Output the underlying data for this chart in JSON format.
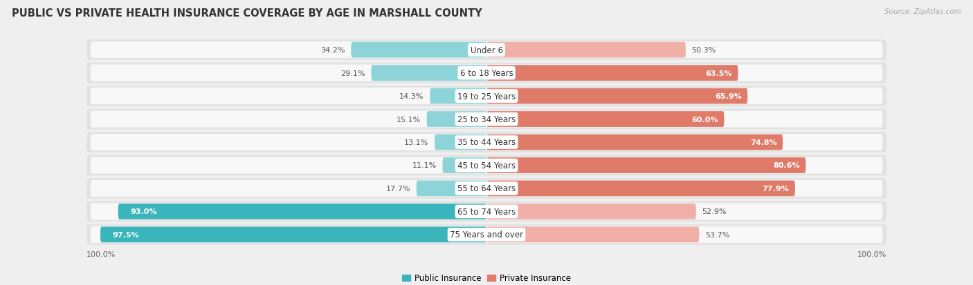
{
  "title": "PUBLIC VS PRIVATE HEALTH INSURANCE COVERAGE BY AGE IN MARSHALL COUNTY",
  "source": "Source: ZipAtlas.com",
  "categories": [
    "Under 6",
    "6 to 18 Years",
    "19 to 25 Years",
    "25 to 34 Years",
    "35 to 44 Years",
    "45 to 54 Years",
    "55 to 64 Years",
    "65 to 74 Years",
    "75 Years and over"
  ],
  "public_values": [
    34.2,
    29.1,
    14.3,
    15.1,
    13.1,
    11.1,
    17.7,
    93.0,
    97.5
  ],
  "private_values": [
    50.3,
    63.5,
    65.9,
    60.0,
    74.8,
    80.6,
    77.9,
    52.9,
    53.7
  ],
  "public_color_strong": "#3ab5bb",
  "public_color_light": "#8dd4d8",
  "private_color_strong": "#e07b6a",
  "private_color_light": "#f0b0a8",
  "background_color": "#efefef",
  "row_bg_color": "#e2e2e2",
  "bar_inner_bg": "#f8f8f8",
  "title_fontsize": 10.5,
  "label_fontsize": 8.5,
  "value_fontsize": 8.0,
  "source_fontsize": 7.5,
  "legend_fontsize": 8.5,
  "max_value": 100.0,
  "pub_strong_threshold": 50.0,
  "priv_strong_threshold": 60.0
}
